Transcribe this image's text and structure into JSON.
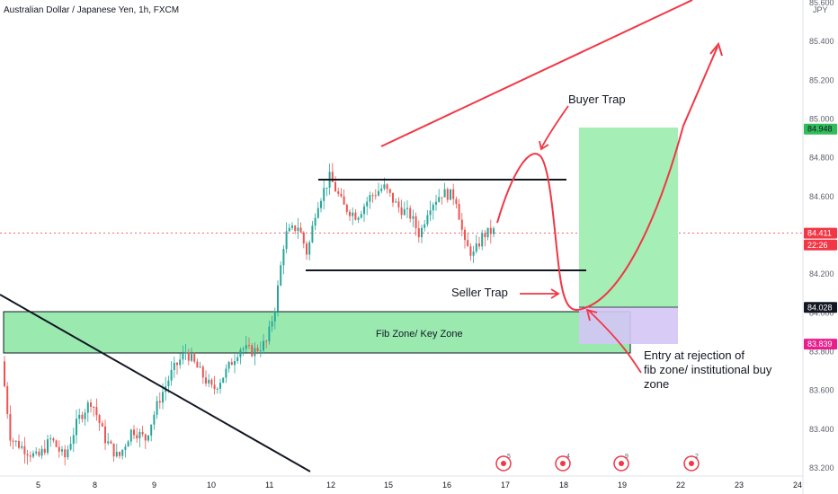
{
  "chart_data": {
    "type": "candlestick",
    "title": "Australian Dollar / Japanese Yen, 1h, FXCM",
    "y_unit": "JPY",
    "ylim": [
      83.1,
      85.7
    ],
    "y_ticks": [
      "85.600",
      "85.400",
      "85.200",
      "85.000",
      "84.800",
      "84.600",
      "84.400",
      "84.200",
      "84.000",
      "83.800",
      "83.600",
      "83.400",
      "83.200"
    ],
    "x_ticks": [
      "5",
      "8",
      "9",
      "10",
      "11",
      "12",
      "15",
      "16",
      "17",
      "18",
      "19",
      "22",
      "23",
      "24"
    ],
    "price_badges": [
      {
        "label": "84.948",
        "value": 84.948,
        "bg": "#2fbd5a",
        "fg": "#131722"
      },
      {
        "label": "84.411",
        "value": 84.411,
        "bg": "#f23645",
        "fg": "#ffffff"
      },
      {
        "label": "22:26",
        "value": 84.35,
        "bg": "#f23645",
        "fg": "#ffffff"
      },
      {
        "label": "84.028",
        "value": 84.028,
        "bg": "#131722",
        "fg": "#ffffff"
      },
      {
        "label": "83.839",
        "value": 83.839,
        "bg": "#e91e8c",
        "fg": "#ffffff"
      }
    ],
    "current_price": 84.411,
    "annotations": {
      "buyer_trap": "Buyer Trap",
      "seller_trap": "Seller Trap",
      "fib_zone": "Fib Zone/ Key Zone",
      "entry_line1": "Entry at rejection of",
      "entry_line2": "fib zone/ institutional buy",
      "entry_line3": "zone"
    },
    "levels": {
      "range_top": 84.69,
      "range_bottom": 84.22,
      "fib_zone_top": 84.005,
      "fib_zone_bottom": 83.82,
      "entry": 84.028,
      "take_profit": 84.948,
      "stop": 83.839
    },
    "event_badges": [
      "5",
      "4",
      "9",
      "2"
    ],
    "colors": {
      "up": "#26a69a",
      "down": "#ef5350",
      "zone": "#a7f0b8",
      "target": "#7fe39a",
      "stop": "#c9b7f5",
      "arrow": "#f23645"
    }
  }
}
